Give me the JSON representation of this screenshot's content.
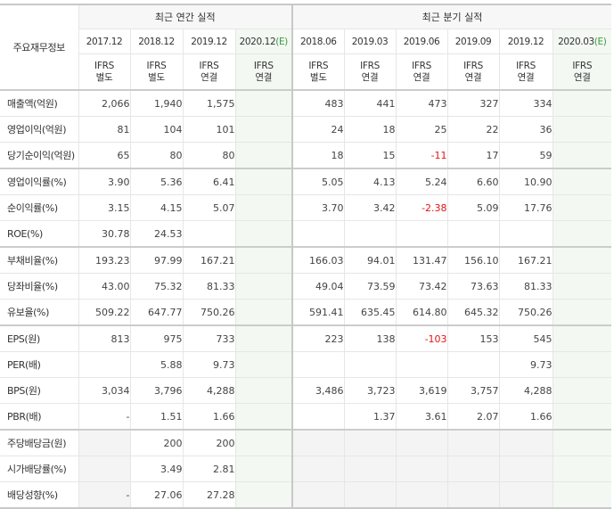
{
  "table": {
    "row_header_title": "주요재무정보",
    "groups": [
      {
        "label": "최근 연간 실적",
        "colspan": 4
      },
      {
        "label": "최근 분기 실적",
        "colspan": 6
      }
    ],
    "estimate_marker": "(E)",
    "columns": [
      {
        "period": "2017.12",
        "estimate": false,
        "acct_line1": "IFRS",
        "acct_line2": "별도"
      },
      {
        "period": "2018.12",
        "estimate": false,
        "acct_line1": "IFRS",
        "acct_line2": "별도"
      },
      {
        "period": "2019.12",
        "estimate": false,
        "acct_line1": "IFRS",
        "acct_line2": "연결"
      },
      {
        "period": "2020.12",
        "estimate": true,
        "acct_line1": "IFRS",
        "acct_line2": "연결"
      },
      {
        "period": "2018.06",
        "estimate": false,
        "acct_line1": "IFRS",
        "acct_line2": "별도"
      },
      {
        "period": "2019.03",
        "estimate": false,
        "acct_line1": "IFRS",
        "acct_line2": "연결"
      },
      {
        "period": "2019.06",
        "estimate": false,
        "acct_line1": "IFRS",
        "acct_line2": "연결"
      },
      {
        "period": "2019.09",
        "estimate": false,
        "acct_line1": "IFRS",
        "acct_line2": "연결"
      },
      {
        "period": "2019.12",
        "estimate": false,
        "acct_line1": "IFRS",
        "acct_line2": "연결"
      },
      {
        "period": "2020.03",
        "estimate": true,
        "acct_line1": "IFRS",
        "acct_line2": "연결"
      }
    ],
    "rows": [
      {
        "label": "매출액(억원)",
        "values": [
          "2,066",
          "1,940",
          "1,575",
          "",
          "483",
          "441",
          "473",
          "327",
          "334",
          ""
        ]
      },
      {
        "label": "영업이익(억원)",
        "values": [
          "81",
          "104",
          "101",
          "",
          "24",
          "18",
          "25",
          "22",
          "36",
          ""
        ]
      },
      {
        "label": "당기순이익(억원)",
        "values": [
          "65",
          "80",
          "80",
          "",
          "18",
          "15",
          "-11",
          "17",
          "59",
          ""
        ]
      },
      {
        "label": "영업이익률(%)",
        "values": [
          "3.90",
          "5.36",
          "6.41",
          "",
          "5.05",
          "4.13",
          "5.24",
          "6.60",
          "10.90",
          ""
        ]
      },
      {
        "label": "순이익률(%)",
        "values": [
          "3.15",
          "4.15",
          "5.07",
          "",
          "3.70",
          "3.42",
          "-2.38",
          "5.09",
          "17.76",
          ""
        ]
      },
      {
        "label": "ROE(%)",
        "values": [
          "30.78",
          "24.53",
          "",
          "",
          "",
          "",
          "",
          "",
          "",
          ""
        ]
      },
      {
        "label": "부채비율(%)",
        "values": [
          "193.23",
          "97.99",
          "167.21",
          "",
          "166.03",
          "94.01",
          "131.47",
          "156.10",
          "167.21",
          ""
        ]
      },
      {
        "label": "당좌비율(%)",
        "values": [
          "43.00",
          "75.32",
          "81.33",
          "",
          "49.04",
          "73.59",
          "73.42",
          "73.63",
          "81.33",
          ""
        ]
      },
      {
        "label": "유보율(%)",
        "values": [
          "509.22",
          "647.77",
          "750.26",
          "",
          "591.41",
          "635.45",
          "614.80",
          "645.32",
          "750.26",
          ""
        ]
      },
      {
        "label": "EPS(원)",
        "values": [
          "813",
          "975",
          "733",
          "",
          "223",
          "138",
          "-103",
          "153",
          "545",
          ""
        ]
      },
      {
        "label": "PER(배)",
        "values": [
          "",
          "5.88",
          "9.73",
          "",
          "",
          "",
          "",
          "",
          "9.73",
          ""
        ]
      },
      {
        "label": "BPS(원)",
        "values": [
          "3,034",
          "3,796",
          "4,288",
          "",
          "3,486",
          "3,723",
          "3,619",
          "3,757",
          "4,288",
          ""
        ]
      },
      {
        "label": "PBR(배)",
        "values": [
          "-",
          "1.51",
          "1.66",
          "",
          "",
          "1.37",
          "3.61",
          "2.07",
          "1.66",
          ""
        ]
      },
      {
        "label": "주당배당금(원)",
        "values": [
          "",
          "200",
          "200",
          "",
          "",
          "",
          "",
          "",
          "",
          ""
        ]
      },
      {
        "label": "시가배당률(%)",
        "values": [
          "",
          "3.49",
          "2.81",
          "",
          "",
          "",
          "",
          "",
          "",
          ""
        ]
      },
      {
        "label": "배당성향(%)",
        "values": [
          "-",
          "27.06",
          "27.28",
          "",
          "",
          "",
          "",
          "",
          "",
          ""
        ]
      }
    ]
  },
  "colors": {
    "accounting_label": "#e4661f",
    "estimate_marker": "#3a9a3a",
    "estimate_column_bg": "#f3f8f3",
    "negative_value": "#e31414",
    "shaded_cell_bg": "#f4f4f4"
  }
}
